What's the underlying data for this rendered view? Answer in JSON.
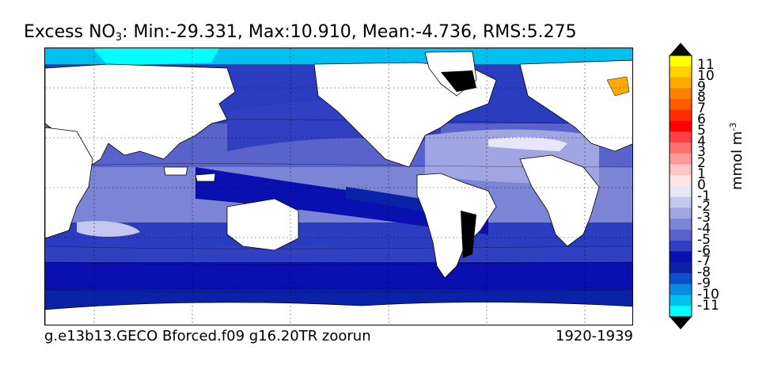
{
  "title": {
    "prefix": "Excess NO",
    "sub": "3",
    "stats": ": Min:-29.331, Max:10.910, Mean:-4.736, RMS:5.275"
  },
  "footer": {
    "run": "g.e13b13.GECO Bforced.f09 g16.20TR zoorun",
    "period": "1920-1939"
  },
  "colorbar": {
    "unit_main": "mmol m",
    "unit_sup": "-3",
    "ticks": [
      "11",
      "10",
      "9",
      "8",
      "7",
      "6",
      "5",
      "4",
      "3",
      "2",
      "1",
      "0",
      "-1",
      "-2",
      "-3",
      "-4",
      "-5",
      "-6",
      "-7",
      "-8",
      "-9",
      "-10",
      "-11"
    ],
    "colors": [
      "#ffff00",
      "#ffd200",
      "#ffaa00",
      "#ff8000",
      "#ff5a00",
      "#ff2d00",
      "#ff0000",
      "#ff4040",
      "#ff7070",
      "#ff9a9a",
      "#ffc4c4",
      "#ffe6e6",
      "#e6e8f8",
      "#c4c8ee",
      "#a0a6e2",
      "#7c84d6",
      "#5a62cc",
      "#3040c0",
      "#0a10b0",
      "#0a22a8",
      "#0a50c8",
      "#0a8ae0",
      "#00c0f0",
      "#00ffff"
    ]
  },
  "legend_visual": {
    "land_color": "#ffffff",
    "frame_color": "#000000"
  }
}
